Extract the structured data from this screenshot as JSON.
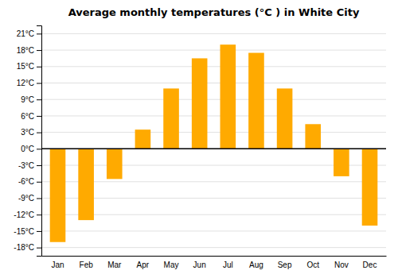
{
  "chart_data": {
    "type": "bar",
    "title": "Average monthly temperatures (°C ) in White City",
    "categories": [
      "Jan",
      "Feb",
      "Mar",
      "Apr",
      "May",
      "Jun",
      "Jul",
      "Aug",
      "Sep",
      "Oct",
      "Nov",
      "Dec"
    ],
    "values": [
      -17,
      -13,
      -5.5,
      3.5,
      11,
      16.5,
      19,
      17.5,
      11,
      4.5,
      -5,
      -14
    ],
    "color": "#FFAA00",
    "ylim": [
      -19.5,
      22.5
    ],
    "yticks": [
      {
        "value": -18,
        "label": "-18°C"
      },
      {
        "value": -15,
        "label": "-15°C"
      },
      {
        "value": -12,
        "label": "-12°C"
      },
      {
        "value": -9,
        "label": "-9°C"
      },
      {
        "value": -6,
        "label": "-6°C"
      },
      {
        "value": -3,
        "label": "-3°C"
      },
      {
        "value": 0,
        "label": "0°C"
      },
      {
        "value": 3,
        "label": "3°C"
      },
      {
        "value": 6,
        "label": "6°C"
      },
      {
        "value": 9,
        "label": "9°C"
      },
      {
        "value": 12,
        "label": "12°C"
      },
      {
        "value": 15,
        "label": "15°C"
      },
      {
        "value": 18,
        "label": "18°C"
      },
      {
        "value": 21,
        "label": "21°C"
      }
    ],
    "grid": true
  }
}
